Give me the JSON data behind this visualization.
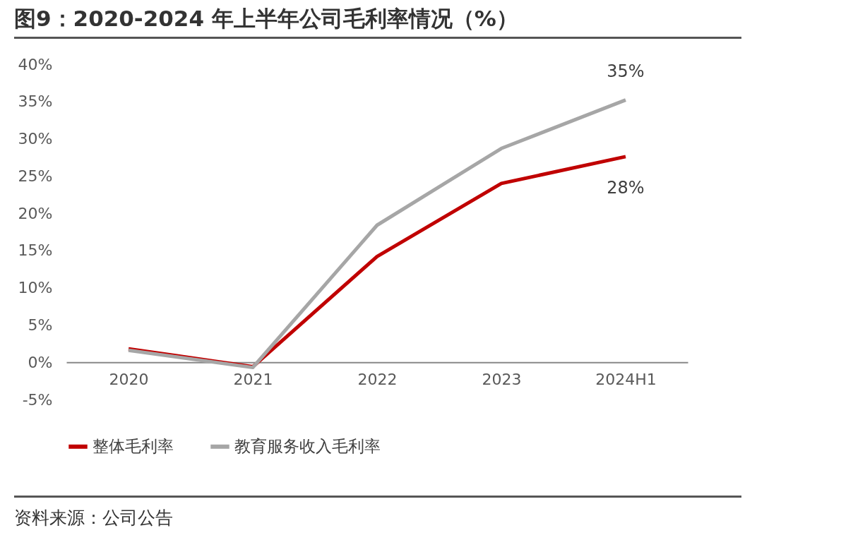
{
  "chart_data": {
    "type": "line",
    "title": "图9：2020-2024 年上半年公司毛利率情况（%）",
    "categories": [
      "2020",
      "2021",
      "2022",
      "2023",
      "2024H1"
    ],
    "series": [
      {
        "name": "整体毛利率",
        "color": "#c00000",
        "values": [
          1.8,
          -0.6,
          14.2,
          24.0,
          27.6
        ],
        "value_labels": [
          null,
          null,
          null,
          null,
          "28%"
        ]
      },
      {
        "name": "教育服务收入毛利率",
        "color": "#a6a6a6",
        "values": [
          1.6,
          -0.7,
          18.4,
          28.7,
          35.2
        ],
        "value_labels": [
          null,
          null,
          null,
          null,
          "35%"
        ]
      }
    ],
    "ylim": [
      -5,
      40
    ],
    "yticks": [
      {
        "value": -5,
        "label": "-5%"
      },
      {
        "value": 0,
        "label": "0%"
      },
      {
        "value": 5,
        "label": "5%"
      },
      {
        "value": 10,
        "label": "10%"
      },
      {
        "value": 15,
        "label": "15%"
      },
      {
        "value": 20,
        "label": "20%"
      },
      {
        "value": 25,
        "label": "25%"
      },
      {
        "value": 30,
        "label": "30%"
      },
      {
        "value": 35,
        "label": "35%"
      },
      {
        "value": 40,
        "label": "40%"
      }
    ],
    "grid": false,
    "legend": "bottom",
    "marker": "none",
    "line_style": "solid",
    "annotations": [
      "资料来源：公司公告"
    ]
  }
}
